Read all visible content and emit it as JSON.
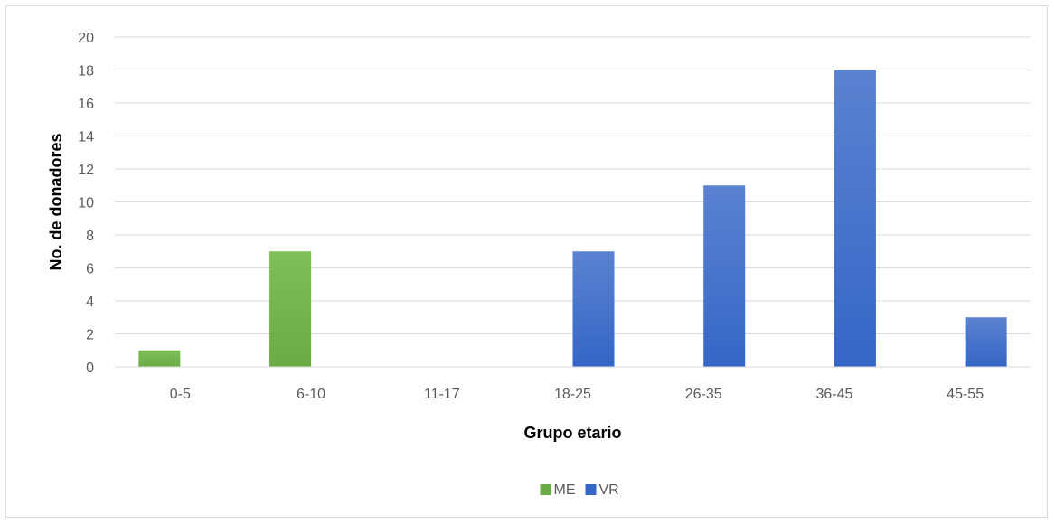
{
  "chart_data": {
    "type": "bar",
    "categories": [
      "0-5",
      "6-10",
      "11-17",
      "18-25",
      "26-35",
      "36-45",
      "45-55"
    ],
    "series": [
      {
        "name": "ME",
        "values": [
          1,
          7,
          0,
          0,
          0,
          0,
          0
        ],
        "color": "#6aab45",
        "color_light": "#7fbf5a"
      },
      {
        "name": "VR",
        "values": [
          0,
          0,
          0,
          7,
          11,
          18,
          3
        ],
        "color": "#3566c6",
        "color_light": "#5b82d0"
      }
    ],
    "xlabel": "Grupo etario",
    "ylabel": "No. de donadores",
    "ylim": [
      0,
      20
    ],
    "yticks": [
      0,
      2,
      4,
      6,
      8,
      10,
      12,
      14,
      16,
      18,
      20
    ],
    "grid": true,
    "legend_position": "bottom"
  }
}
